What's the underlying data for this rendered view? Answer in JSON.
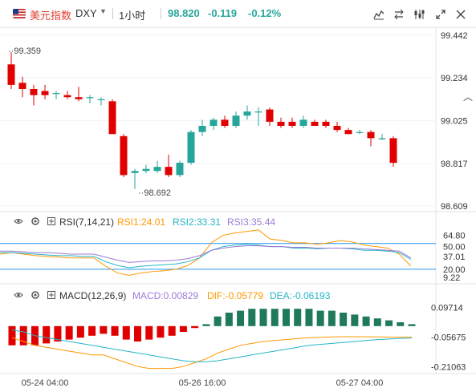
{
  "header": {
    "symbol_name": "美元指数",
    "ticker": "DXY",
    "interval": "1小时",
    "last": "98.820",
    "change": "-0.119",
    "change_pct": "-0.12%"
  },
  "toolbar": {
    "icons": [
      "indicator-icon",
      "compare-icon",
      "settings-icon",
      "drawing-icon",
      "fullscreen-icon",
      "close-icon"
    ]
  },
  "colors": {
    "up": "#26a69a",
    "down": "#e00000",
    "up_bar": "#1e7a5a",
    "rsi1": "#ff9800",
    "rsi2": "#26b5c8",
    "rsi3": "#9c7ad6",
    "dif": "#ff9800",
    "dea": "#26b5c8",
    "band": "#2196f3"
  },
  "chart_data": [
    {
      "type": "candlestick",
      "name_label": "price",
      "y_ticks": [
        "99.442",
        "99.234",
        "99.025",
        "98.817",
        "98.609"
      ],
      "x_ticks": [
        "05-24 04:00",
        "05-26 16:00",
        "05-27 04:00"
      ],
      "ylim": [
        98.609,
        99.442
      ],
      "max_label": "99.359",
      "min_label": "98.692",
      "candles": [
        {
          "o": 99.3,
          "h": 99.359,
          "l": 99.18,
          "c": 99.2
        },
        {
          "o": 99.21,
          "h": 99.24,
          "l": 99.14,
          "c": 99.18
        },
        {
          "o": 99.18,
          "h": 99.2,
          "l": 99.1,
          "c": 99.15
        },
        {
          "o": 99.17,
          "h": 99.2,
          "l": 99.13,
          "c": 99.15
        },
        {
          "o": 99.16,
          "h": 99.17,
          "l": 99.13,
          "c": 99.16
        },
        {
          "o": 99.15,
          "h": 99.17,
          "l": 99.13,
          "c": 99.14
        },
        {
          "o": 99.14,
          "h": 99.19,
          "l": 99.12,
          "c": 99.13
        },
        {
          "o": 99.14,
          "h": 99.15,
          "l": 99.11,
          "c": 99.14
        },
        {
          "o": 99.13,
          "h": 99.14,
          "l": 99.1,
          "c": 99.13
        },
        {
          "o": 99.12,
          "h": 99.13,
          "l": 98.96,
          "c": 98.96
        },
        {
          "o": 98.95,
          "h": 98.96,
          "l": 98.75,
          "c": 98.76
        },
        {
          "o": 98.77,
          "h": 98.79,
          "l": 98.692,
          "c": 98.78
        },
        {
          "o": 98.78,
          "h": 98.81,
          "l": 98.77,
          "c": 98.79
        },
        {
          "o": 98.78,
          "h": 98.83,
          "l": 98.77,
          "c": 98.8
        },
        {
          "o": 98.8,
          "h": 98.86,
          "l": 98.75,
          "c": 98.76
        },
        {
          "o": 98.76,
          "h": 98.83,
          "l": 98.75,
          "c": 98.82
        },
        {
          "o": 98.82,
          "h": 98.98,
          "l": 98.81,
          "c": 98.97
        },
        {
          "o": 98.97,
          "h": 99.03,
          "l": 98.95,
          "c": 99.0
        },
        {
          "o": 99.0,
          "h": 99.04,
          "l": 98.98,
          "c": 99.03
        },
        {
          "o": 99.03,
          "h": 99.05,
          "l": 98.99,
          "c": 99.0
        },
        {
          "o": 99.0,
          "h": 99.07,
          "l": 98.99,
          "c": 99.05
        },
        {
          "o": 99.05,
          "h": 99.1,
          "l": 99.03,
          "c": 99.07
        },
        {
          "o": 99.07,
          "h": 99.09,
          "l": 99.0,
          "c": 99.07
        },
        {
          "o": 99.08,
          "h": 99.09,
          "l": 99.0,
          "c": 99.02
        },
        {
          "o": 99.02,
          "h": 99.04,
          "l": 98.99,
          "c": 99.0
        },
        {
          "o": 99.02,
          "h": 99.04,
          "l": 98.99,
          "c": 99.0
        },
        {
          "o": 99.0,
          "h": 99.05,
          "l": 98.99,
          "c": 99.03
        },
        {
          "o": 99.02,
          "h": 99.03,
          "l": 99.0,
          "c": 99.0
        },
        {
          "o": 99.02,
          "h": 99.03,
          "l": 98.99,
          "c": 99.0
        },
        {
          "o": 99.0,
          "h": 99.02,
          "l": 98.97,
          "c": 98.98
        },
        {
          "o": 98.98,
          "h": 98.99,
          "l": 98.96,
          "c": 98.96
        },
        {
          "o": 98.97,
          "h": 98.98,
          "l": 98.96,
          "c": 98.97
        },
        {
          "o": 98.97,
          "h": 98.98,
          "l": 98.9,
          "c": 98.94
        },
        {
          "o": 98.94,
          "h": 98.96,
          "l": 98.93,
          "c": 98.94
        },
        {
          "o": 98.94,
          "h": 98.95,
          "l": 98.8,
          "c": 98.82
        }
      ]
    },
    {
      "type": "line",
      "name_label": "RSI(7,14,21)",
      "values_text": {
        "rsi1": "RSI1:24.01",
        "rsi2": "RSI2:33.31",
        "rsi3": "RSI3:35.44"
      },
      "y_ticks": [
        "64.80",
        "50.00",
        "37.01",
        "20.00",
        "9.22"
      ],
      "ylim": [
        5,
        75
      ],
      "bands": [
        54,
        20
      ],
      "series": [
        {
          "key": "rsi1",
          "values": [
            40,
            42,
            40,
            38,
            37,
            36,
            35,
            35,
            35,
            24,
            15,
            12,
            15,
            17,
            18,
            20,
            25,
            35,
            55,
            65,
            68,
            70,
            72,
            60,
            58,
            55,
            55,
            53,
            55,
            58,
            56,
            52,
            50,
            48,
            40,
            24
          ]
        },
        {
          "key": "rsi2",
          "values": [
            42,
            42,
            41,
            40,
            39,
            38,
            38,
            37,
            37,
            30,
            25,
            22,
            24,
            25,
            26,
            27,
            30,
            35,
            45,
            50,
            52,
            53,
            52,
            50,
            50,
            48,
            48,
            47,
            48,
            48,
            47,
            45,
            45,
            44,
            42,
            33
          ]
        },
        {
          "key": "rsi3",
          "values": [
            44,
            44,
            43,
            42,
            42,
            41,
            40,
            40,
            40,
            36,
            32,
            29,
            30,
            31,
            31,
            32,
            34,
            38,
            45,
            48,
            50,
            51,
            51,
            50,
            50,
            49,
            49,
            48,
            48,
            48,
            48,
            47,
            46,
            45,
            44,
            35
          ]
        }
      ]
    },
    {
      "type": "bar",
      "name_label": "MACD(12,26,9)",
      "values_text": {
        "macd": "MACD:0.00829",
        "dif": "DIF:-0.05779",
        "dea": "DEA:-0.06193"
      },
      "y_ticks": [
        "0.09714",
        "-0.05675",
        "-0.21063"
      ],
      "ylim": [
        -0.23,
        0.12
      ],
      "histogram": [
        -0.1,
        -0.1,
        -0.1,
        -0.09,
        -0.08,
        -0.07,
        -0.06,
        -0.05,
        -0.04,
        -0.05,
        -0.07,
        -0.08,
        -0.07,
        -0.06,
        -0.05,
        -0.03,
        -0.01,
        0.01,
        0.05,
        0.07,
        0.08,
        0.09,
        0.09,
        0.09,
        0.09,
        0.09,
        0.09,
        0.08,
        0.08,
        0.07,
        0.06,
        0.05,
        0.04,
        0.03,
        0.02,
        0.01
      ],
      "series": [
        {
          "key": "dif",
          "values": [
            -0.06,
            -0.08,
            -0.1,
            -0.11,
            -0.12,
            -0.13,
            -0.14,
            -0.15,
            -0.15,
            -0.17,
            -0.19,
            -0.21,
            -0.22,
            -0.22,
            -0.22,
            -0.21,
            -0.19,
            -0.17,
            -0.14,
            -0.12,
            -0.1,
            -0.09,
            -0.08,
            -0.075,
            -0.07,
            -0.065,
            -0.06,
            -0.058,
            -0.056,
            -0.055,
            -0.055,
            -0.055,
            -0.056,
            -0.057,
            -0.057,
            -0.0578
          ]
        },
        {
          "key": "dea",
          "values": [
            -0.02,
            -0.03,
            -0.05,
            -0.06,
            -0.07,
            -0.08,
            -0.09,
            -0.1,
            -0.11,
            -0.12,
            -0.13,
            -0.14,
            -0.15,
            -0.16,
            -0.17,
            -0.18,
            -0.185,
            -0.185,
            -0.18,
            -0.17,
            -0.16,
            -0.15,
            -0.14,
            -0.13,
            -0.12,
            -0.11,
            -0.1,
            -0.095,
            -0.09,
            -0.085,
            -0.08,
            -0.075,
            -0.07,
            -0.067,
            -0.064,
            -0.0619
          ]
        }
      ]
    }
  ]
}
